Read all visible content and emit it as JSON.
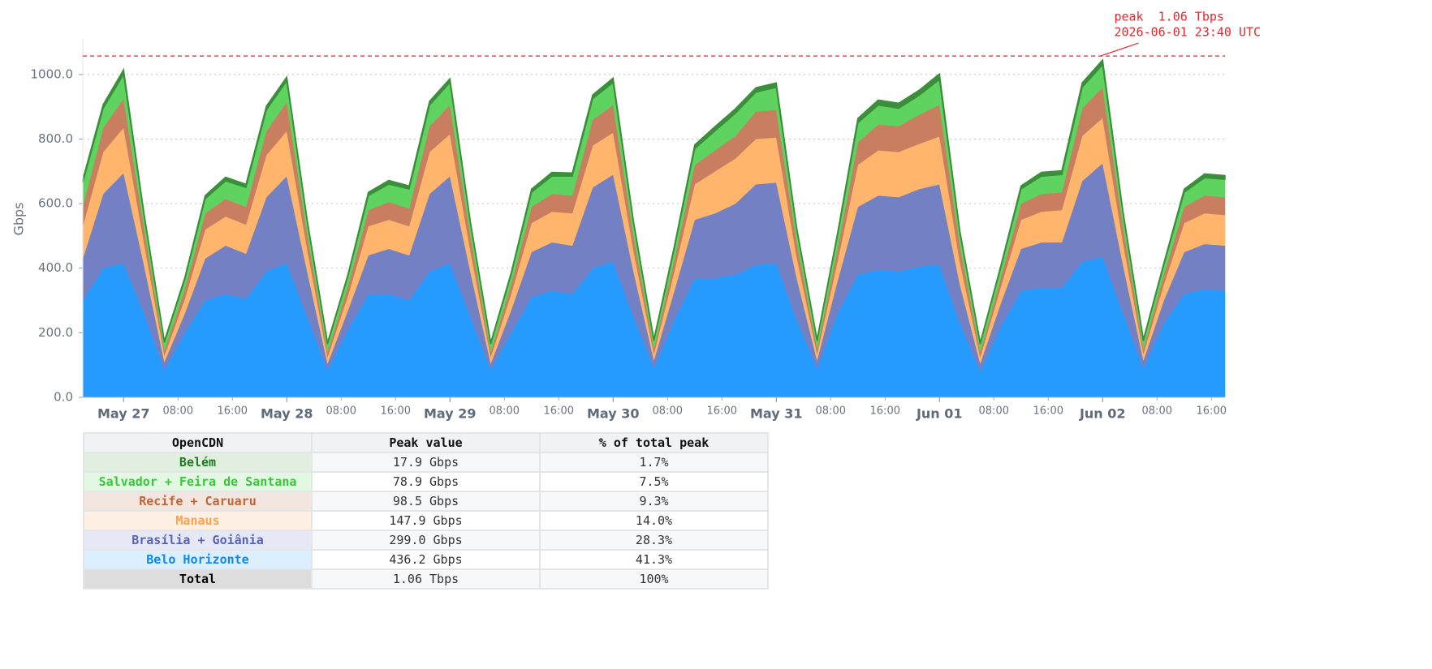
{
  "chart_data": {
    "type": "stacked-area",
    "ylabel": "Gbps",
    "xlim": [
      "2026-05-26T18:00",
      "2026-06-02T18:00"
    ],
    "ylim": [
      0,
      1110
    ],
    "yticks": [
      {
        "value": 0,
        "label": "0.0"
      },
      {
        "value": 200,
        "label": "200.0"
      },
      {
        "value": 400,
        "label": "400.0"
      },
      {
        "value": 600,
        "label": "600.0"
      },
      {
        "value": 800,
        "label": "800.0"
      },
      {
        "value": 1000,
        "label": "1000.0"
      }
    ],
    "grid": true,
    "xticks_major": [
      {
        "value": "2026-05-27T00:00",
        "label": "May 27"
      },
      {
        "value": "2026-05-28T00:00",
        "label": "May 28"
      },
      {
        "value": "2026-05-29T00:00",
        "label": "May 29"
      },
      {
        "value": "2026-05-30T00:00",
        "label": "May 30"
      },
      {
        "value": "2026-05-31T00:00",
        "label": "May 31"
      },
      {
        "value": "2026-06-01T00:00",
        "label": "Jun 01"
      },
      {
        "value": "2026-06-02T00:00",
        "label": "Jun 02"
      }
    ],
    "xticks": [
      {
        "value": "2026-05-27T08:00",
        "label": "08:00"
      },
      {
        "value": "2026-05-27T16:00",
        "label": "16:00"
      },
      {
        "value": "2026-05-28T08:00",
        "label": "08:00"
      },
      {
        "value": "2026-05-28T16:00",
        "label": "16:00"
      },
      {
        "value": "2026-05-29T08:00",
        "label": "08:00"
      },
      {
        "value": "2026-05-29T16:00",
        "label": "16:00"
      },
      {
        "value": "2026-05-30T08:00",
        "label": "08:00"
      },
      {
        "value": "2026-05-30T16:00",
        "label": "16:00"
      },
      {
        "value": "2026-05-31T08:00",
        "label": "08:00"
      },
      {
        "value": "2026-05-31T16:00",
        "label": "16:00"
      },
      {
        "value": "2026-06-01T08:00",
        "label": "08:00"
      },
      {
        "value": "2026-06-01T16:00",
        "label": "16:00"
      },
      {
        "value": "2026-06-02T08:00",
        "label": "08:00"
      },
      {
        "value": "2026-06-02T16:00",
        "label": "16:00"
      }
    ],
    "x": [
      "2026-05-26T18:00",
      "2026-05-26T21:00",
      "2026-05-27T00:00",
      "2026-05-27T03:00",
      "2026-05-27T06:00",
      "2026-05-27T09:00",
      "2026-05-27T12:00",
      "2026-05-27T15:00",
      "2026-05-27T18:00",
      "2026-05-27T21:00",
      "2026-05-28T00:00",
      "2026-05-28T03:00",
      "2026-05-28T06:00",
      "2026-05-28T09:00",
      "2026-05-28T12:00",
      "2026-05-28T15:00",
      "2026-05-28T18:00",
      "2026-05-28T21:00",
      "2026-05-29T00:00",
      "2026-05-29T03:00",
      "2026-05-29T06:00",
      "2026-05-29T09:00",
      "2026-05-29T12:00",
      "2026-05-29T15:00",
      "2026-05-29T18:00",
      "2026-05-29T21:00",
      "2026-05-30T00:00",
      "2026-05-30T03:00",
      "2026-05-30T06:00",
      "2026-05-30T09:00",
      "2026-05-30T12:00",
      "2026-05-30T15:00",
      "2026-05-30T18:00",
      "2026-05-30T21:00",
      "2026-05-31T00:00",
      "2026-05-31T03:00",
      "2026-05-31T06:00",
      "2026-05-31T09:00",
      "2026-05-31T12:00",
      "2026-05-31T15:00",
      "2026-05-31T18:00",
      "2026-05-31T21:00",
      "2026-06-01T00:00",
      "2026-06-01T03:00",
      "2026-06-01T06:00",
      "2026-06-01T09:00",
      "2026-06-01T12:00",
      "2026-06-01T15:00",
      "2026-06-01T18:00",
      "2026-06-01T21:00",
      "2026-06-02T00:00",
      "2026-06-02T03:00",
      "2026-06-02T06:00",
      "2026-06-02T09:00",
      "2026-06-02T12:00",
      "2026-06-02T15:00",
      "2026-06-02T18:00"
    ],
    "series": [
      {
        "name": "Belo Horizonte",
        "color": "#269bff",
        "values": [
          300,
          400,
          415,
          260,
          85,
          200,
          300,
          320,
          305,
          390,
          415,
          250,
          85,
          210,
          320,
          320,
          300,
          390,
          415,
          250,
          85,
          200,
          310,
          330,
          320,
          400,
          420,
          250,
          90,
          240,
          370,
          370,
          380,
          410,
          415,
          240,
          90,
          260,
          380,
          395,
          390,
          405,
          410,
          230,
          80,
          220,
          330,
          340,
          340,
          420,
          435,
          260,
          90,
          230,
          320,
          335,
          330
        ]
      },
      {
        "name": "Brasília + Goiânia",
        "color": "#7380c4",
        "values": [
          130,
          230,
          280,
          150,
          25,
          60,
          130,
          150,
          140,
          230,
          270,
          140,
          20,
          60,
          120,
          140,
          140,
          240,
          270,
          140,
          20,
          70,
          140,
          150,
          150,
          250,
          270,
          140,
          25,
          90,
          180,
          200,
          220,
          250,
          250,
          130,
          25,
          100,
          210,
          230,
          230,
          240,
          250,
          120,
          25,
          70,
          130,
          140,
          140,
          250,
          290,
          150,
          25,
          70,
          130,
          140,
          140
        ]
      },
      {
        "name": "Manaus",
        "color": "#ffb56b",
        "values": [
          100,
          130,
          140,
          70,
          20,
          45,
          90,
          90,
          90,
          130,
          140,
          70,
          20,
          45,
          90,
          90,
          90,
          130,
          130,
          65,
          20,
          50,
          90,
          95,
          100,
          130,
          130,
          65,
          20,
          60,
          110,
          130,
          140,
          140,
          140,
          65,
          20,
          60,
          130,
          140,
          140,
          140,
          148,
          70,
          20,
          50,
          90,
          95,
          100,
          140,
          140,
          70,
          20,
          50,
          90,
          95,
          95
        ]
      },
      {
        "name": "Recife + Caruaru",
        "color": "#c97f5f",
        "values": [
          60,
          75,
          90,
          45,
          15,
          30,
          50,
          55,
          55,
          75,
          90,
          45,
          15,
          30,
          50,
          55,
          55,
          80,
          90,
          45,
          15,
          30,
          50,
          55,
          55,
          80,
          85,
          45,
          15,
          35,
          60,
          65,
          70,
          85,
          85,
          45,
          15,
          40,
          70,
          80,
          80,
          90,
          98,
          50,
          15,
          30,
          50,
          55,
          55,
          85,
          95,
          50,
          15,
          30,
          50,
          55,
          55
        ]
      },
      {
        "name": "Salvador + Feira de Santana",
        "color": "#5fd35f",
        "values": [
          75,
          60,
          75,
          40,
          25,
          30,
          45,
          55,
          60,
          65,
          65,
          40,
          25,
          30,
          45,
          55,
          60,
          65,
          70,
          40,
          25,
          30,
          45,
          55,
          60,
          65,
          70,
          40,
          25,
          35,
          50,
          60,
          70,
          60,
          70,
          40,
          25,
          40,
          60,
          60,
          55,
          60,
          78,
          40,
          25,
          30,
          45,
          55,
          55,
          65,
          70,
          40,
          25,
          30,
          45,
          55,
          55
        ]
      },
      {
        "name": "Belém",
        "color": "#3b8f3b",
        "values": [
          10,
          12,
          15,
          6,
          5,
          6,
          10,
          12,
          10,
          12,
          12,
          6,
          5,
          6,
          10,
          12,
          10,
          12,
          12,
          6,
          5,
          6,
          10,
          12,
          10,
          12,
          14,
          6,
          5,
          8,
          12,
          14,
          14,
          14,
          14,
          6,
          5,
          8,
          14,
          16,
          16,
          16,
          18,
          6,
          5,
          6,
          10,
          12,
          12,
          14,
          15,
          6,
          5,
          6,
          10,
          12,
          12
        ]
      }
    ],
    "peak_line": {
      "value": 1057,
      "color": "#e8262a"
    },
    "annotation": {
      "lines": [
        "peak  1.06 Tbps",
        "2026-06-01 23:40 UTC"
      ],
      "x": "2026-06-01T23:40",
      "y": 1057,
      "color": "#e8262a"
    }
  },
  "table": {
    "header": [
      "OpenCDN",
      "Peak value",
      "% of total peak"
    ],
    "rows": [
      {
        "cells": [
          "Belém",
          "17.9 Gbps",
          "1.7%"
        ],
        "color": "#1f7a1f",
        "background": "#e0efe0"
      },
      {
        "cells": [
          "Salvador + Feira de Santana",
          "78.9 Gbps",
          "7.5%"
        ],
        "color": "#3cc43c",
        "background": "#e3f8e3"
      },
      {
        "cells": [
          "Recife + Caruaru",
          "98.5 Gbps",
          "9.3%"
        ],
        "color": "#c0653a",
        "background": "#f3e6df"
      },
      {
        "cells": [
          "Manaus",
          "147.9 Gbps",
          "14.0%"
        ],
        "color": "#ffa04a",
        "background": "#fff0e3"
      },
      {
        "cells": [
          "Brasília + Goiânia",
          "299.0 Gbps",
          "28.3%"
        ],
        "color": "#5964b8",
        "background": "#e6e9f5"
      },
      {
        "cells": [
          "Belo Horizonte",
          "436.2 Gbps",
          "41.3%"
        ],
        "color": "#1088e8",
        "background": "#dcefff"
      },
      {
        "cells": [
          "Total",
          "1.06 Tbps",
          "100%"
        ],
        "color": "#000000",
        "background": "#dddddd"
      }
    ]
  }
}
